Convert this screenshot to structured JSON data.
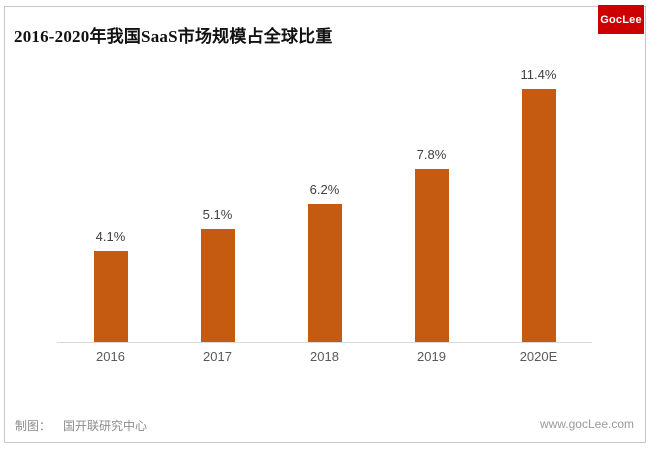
{
  "header": {
    "title": "2016-2020年我国SaaS市场规模占全球比重",
    "logo_text": "GocLee"
  },
  "footer": {
    "credit_label": "制图：",
    "credit_value": "国开联研究中心",
    "website": "www.gocLee.com"
  },
  "colors": {
    "bar": "#c55a11",
    "axis_line": "#d9d9d9",
    "value_label": "#404040",
    "tick_label": "#595959",
    "logo_bg": "#cb0101",
    "logo_text": "#ffffff",
    "card_border": "#c9c9c9",
    "footer_text": "#8c8c8c"
  },
  "chart_data": {
    "type": "bar",
    "title": "2016-2020年我国SaaS市场规模占全球比重",
    "categories": [
      "2016",
      "2017",
      "2018",
      "2019",
      "2020E"
    ],
    "values": [
      4.1,
      5.1,
      6.2,
      7.8,
      11.4
    ],
    "value_labels": [
      "4.1%",
      "5.1%",
      "6.2%",
      "7.8%",
      "11.4%"
    ],
    "unit": "%",
    "xlabel": "",
    "ylabel": "",
    "ylim": [
      0,
      12
    ],
    "grid": false,
    "legend": false,
    "y_axis_visible": false,
    "baseline_visible": true
  }
}
